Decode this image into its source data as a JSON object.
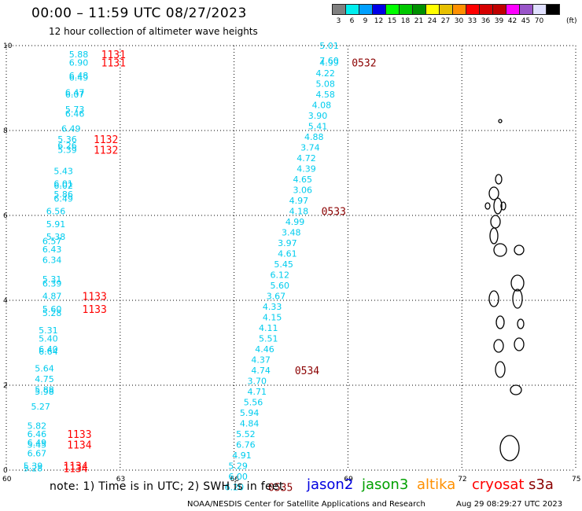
{
  "title": "00:00 – 11:59 UTC 08/27/2023",
  "subtitle": "12 hour collection of altimeter wave heights",
  "legend": {
    "unit": "(ft)",
    "bins": [
      {
        "label": "3",
        "color": "#808080"
      },
      {
        "label": "6",
        "color": "#00eeee"
      },
      {
        "label": "9",
        "color": "#00a0ff"
      },
      {
        "label": "12",
        "color": "#0000e8"
      },
      {
        "label": "15",
        "color": "#00ff00"
      },
      {
        "label": "18",
        "color": "#00c800"
      },
      {
        "label": "21",
        "color": "#009000"
      },
      {
        "label": "24",
        "color": "#ffff00"
      },
      {
        "label": "27",
        "color": "#e7c000"
      },
      {
        "label": "30",
        "color": "#ff9000"
      },
      {
        "label": "33",
        "color": "#ff0000"
      },
      {
        "label": "36",
        "color": "#d60000"
      },
      {
        "label": "39",
        "color": "#c00000"
      },
      {
        "label": "42",
        "color": "#ff00ff"
      },
      {
        "label": "45",
        "color": "#9955c9"
      },
      {
        "label": "70",
        "color": "#e0e0ff"
      },
      {
        "label": "",
        "color": "#000000"
      }
    ]
  },
  "axes": {
    "x_ticks": [
      "60",
      "63",
      "66",
      "69",
      "72",
      "75"
    ],
    "y_ticks": [
      "10",
      "8",
      "6",
      "4",
      "2",
      "0"
    ],
    "lon_range": [
      60,
      75
    ],
    "lat_range": [
      0,
      10
    ]
  },
  "colors": {
    "wave": "#00ccee",
    "time_early": "#ff0000",
    "time_late": "#8b0000"
  },
  "track_left": [
    {
      "lon": 61.9,
      "lat": 9.8,
      "v": "5.88"
    },
    {
      "lon": 61.9,
      "lat": 9.6,
      "v": "6.90"
    },
    {
      "lon": 61.9,
      "lat": 9.3,
      "v": "6.48"
    },
    {
      "lon": 61.9,
      "lat": 9.25,
      "v": "6.49"
    },
    {
      "lon": 61.8,
      "lat": 8.9,
      "v": "6.47"
    },
    {
      "lon": 61.8,
      "lat": 8.85,
      "v": "6.07"
    },
    {
      "lon": 61.8,
      "lat": 8.5,
      "v": "5.73"
    },
    {
      "lon": 61.8,
      "lat": 8.4,
      "v": "6.46"
    },
    {
      "lon": 61.7,
      "lat": 8.05,
      "v": "6.49"
    },
    {
      "lon": 61.6,
      "lat": 7.8,
      "v": "5.36"
    },
    {
      "lon": 61.6,
      "lat": 7.65,
      "v": "6.26"
    },
    {
      "lon": 61.6,
      "lat": 7.55,
      "v": "5.39"
    },
    {
      "lon": 61.5,
      "lat": 7.05,
      "v": "5.43"
    },
    {
      "lon": 61.5,
      "lat": 6.75,
      "v": "6.01"
    },
    {
      "lon": 61.5,
      "lat": 6.7,
      "v": "6.02"
    },
    {
      "lon": 61.5,
      "lat": 6.5,
      "v": "5.86"
    },
    {
      "lon": 61.5,
      "lat": 6.4,
      "v": "6.49"
    },
    {
      "lon": 61.3,
      "lat": 6.1,
      "v": "6.56"
    },
    {
      "lon": 61.3,
      "lat": 5.8,
      "v": "5.91"
    },
    {
      "lon": 61.3,
      "lat": 5.5,
      "v": "5.38"
    },
    {
      "lon": 61.2,
      "lat": 5.4,
      "v": "6.57"
    },
    {
      "lon": 61.2,
      "lat": 5.2,
      "v": "6.43"
    },
    {
      "lon": 61.2,
      "lat": 4.95,
      "v": "6.34"
    },
    {
      "lon": 61.2,
      "lat": 4.5,
      "v": "5.31"
    },
    {
      "lon": 61.2,
      "lat": 4.4,
      "v": "6.39"
    },
    {
      "lon": 61.2,
      "lat": 4.1,
      "v": "4.87"
    },
    {
      "lon": 61.2,
      "lat": 3.8,
      "v": "5.60"
    },
    {
      "lon": 61.2,
      "lat": 3.7,
      "v": "5.28"
    },
    {
      "lon": 61.1,
      "lat": 3.3,
      "v": "5.31"
    },
    {
      "lon": 61.1,
      "lat": 3.1,
      "v": "5.40"
    },
    {
      "lon": 61.1,
      "lat": 2.85,
      "v": "6.40"
    },
    {
      "lon": 61.1,
      "lat": 2.8,
      "v": "6.64"
    },
    {
      "lon": 61.0,
      "lat": 2.4,
      "v": "5.64"
    },
    {
      "lon": 61.0,
      "lat": 2.15,
      "v": "4.75"
    },
    {
      "lon": 61.0,
      "lat": 1.9,
      "v": "5.88"
    },
    {
      "lon": 61.0,
      "lat": 1.85,
      "v": "5.98"
    },
    {
      "lon": 60.9,
      "lat": 1.5,
      "v": "5.27"
    },
    {
      "lon": 60.8,
      "lat": 1.05,
      "v": "5.82"
    },
    {
      "lon": 60.8,
      "lat": 0.85,
      "v": "6.46"
    },
    {
      "lon": 60.8,
      "lat": 0.65,
      "v": "6.49"
    },
    {
      "lon": 60.8,
      "lat": 0.6,
      "v": "5.45"
    },
    {
      "lon": 60.8,
      "lat": 0.4,
      "v": "6.67"
    },
    {
      "lon": 60.7,
      "lat": 0.1,
      "v": "5.39"
    },
    {
      "lon": 60.7,
      "lat": 0.05,
      "v": "5.28"
    }
  ],
  "track_right": [
    {
      "lon": 68.5,
      "lat": 10.0,
      "v": "5.01"
    },
    {
      "lon": 68.5,
      "lat": 9.65,
      "v": "7.60"
    },
    {
      "lon": 68.5,
      "lat": 9.6,
      "v": "4.99"
    },
    {
      "lon": 68.4,
      "lat": 9.35,
      "v": "4.22"
    },
    {
      "lon": 68.4,
      "lat": 9.1,
      "v": "5.08"
    },
    {
      "lon": 68.4,
      "lat": 8.85,
      "v": "4.58"
    },
    {
      "lon": 68.3,
      "lat": 8.6,
      "v": "4.08"
    },
    {
      "lon": 68.2,
      "lat": 8.35,
      "v": "3.90"
    },
    {
      "lon": 68.2,
      "lat": 8.1,
      "v": "5.41"
    },
    {
      "lon": 68.1,
      "lat": 7.85,
      "v": "4.88"
    },
    {
      "lon": 68.0,
      "lat": 7.6,
      "v": "3.74"
    },
    {
      "lon": 67.9,
      "lat": 7.35,
      "v": "4.72"
    },
    {
      "lon": 67.9,
      "lat": 7.1,
      "v": "4.39"
    },
    {
      "lon": 67.8,
      "lat": 6.85,
      "v": "4.65"
    },
    {
      "lon": 67.8,
      "lat": 6.6,
      "v": "3.06"
    },
    {
      "lon": 67.7,
      "lat": 6.35,
      "v": "4.97"
    },
    {
      "lon": 67.7,
      "lat": 6.1,
      "v": "4.18"
    },
    {
      "lon": 67.6,
      "lat": 5.85,
      "v": "4.99"
    },
    {
      "lon": 67.5,
      "lat": 5.6,
      "v": "3.48"
    },
    {
      "lon": 67.4,
      "lat": 5.35,
      "v": "3.97"
    },
    {
      "lon": 67.4,
      "lat": 5.1,
      "v": "4.61"
    },
    {
      "lon": 67.3,
      "lat": 4.85,
      "v": "5.45"
    },
    {
      "lon": 67.2,
      "lat": 4.6,
      "v": "6.12"
    },
    {
      "lon": 67.2,
      "lat": 4.35,
      "v": "5.60"
    },
    {
      "lon": 67.1,
      "lat": 4.1,
      "v": "3.67"
    },
    {
      "lon": 67.0,
      "lat": 3.85,
      "v": "4.33"
    },
    {
      "lon": 67.0,
      "lat": 3.6,
      "v": "4.15"
    },
    {
      "lon": 66.9,
      "lat": 3.35,
      "v": "4.11"
    },
    {
      "lon": 66.9,
      "lat": 3.1,
      "v": "5.51"
    },
    {
      "lon": 66.8,
      "lat": 2.85,
      "v": "4.46"
    },
    {
      "lon": 66.7,
      "lat": 2.6,
      "v": "4.37"
    },
    {
      "lon": 66.7,
      "lat": 2.35,
      "v": "4.74"
    },
    {
      "lon": 66.6,
      "lat": 2.1,
      "v": "3.70"
    },
    {
      "lon": 66.6,
      "lat": 1.85,
      "v": "4.71"
    },
    {
      "lon": 66.5,
      "lat": 1.6,
      "v": "5.56"
    },
    {
      "lon": 66.4,
      "lat": 1.35,
      "v": "5.94"
    },
    {
      "lon": 66.4,
      "lat": 1.1,
      "v": "4.84"
    },
    {
      "lon": 66.3,
      "lat": 0.85,
      "v": "5.52"
    },
    {
      "lon": 66.3,
      "lat": 0.6,
      "v": "6.76"
    },
    {
      "lon": 66.2,
      "lat": 0.35,
      "v": "4.91"
    },
    {
      "lon": 66.1,
      "lat": 0.1,
      "v": "5.29"
    },
    {
      "lon": 66.1,
      "lat": -0.15,
      "v": "6.00"
    },
    {
      "lon": 66.0,
      "lat": -0.4,
      "v": "6.20"
    }
  ],
  "times": [
    {
      "lon": 62.5,
      "lat": 9.8,
      "t": "1131",
      "c": "early"
    },
    {
      "lon": 62.5,
      "lat": 9.6,
      "t": "1131",
      "c": "early"
    },
    {
      "lon": 62.3,
      "lat": 7.8,
      "t": "1132",
      "c": "early"
    },
    {
      "lon": 62.3,
      "lat": 7.55,
      "t": "1132",
      "c": "early"
    },
    {
      "lon": 62.0,
      "lat": 4.1,
      "t": "1133",
      "c": "early"
    },
    {
      "lon": 62.0,
      "lat": 3.8,
      "t": "1133",
      "c": "early"
    },
    {
      "lon": 61.6,
      "lat": 0.85,
      "t": "1133",
      "c": "early"
    },
    {
      "lon": 61.6,
      "lat": 0.6,
      "t": "1134",
      "c": "early"
    },
    {
      "lon": 61.5,
      "lat": 0.1,
      "t": "1134",
      "c": "early"
    },
    {
      "lon": 61.5,
      "lat": 0.05,
      "t": "1134",
      "c": "early"
    },
    {
      "lon": 69.1,
      "lat": 9.6,
      "t": "0532",
      "c": "late"
    },
    {
      "lon": 68.3,
      "lat": 6.1,
      "t": "0533",
      "c": "late"
    },
    {
      "lon": 67.6,
      "lat": 2.35,
      "t": "0534",
      "c": "late"
    },
    {
      "lon": 66.9,
      "lat": -0.4,
      "t": "0535",
      "c": "late"
    }
  ],
  "note": "note:  1) Time is in UTC;  2) SWH is in feet",
  "satellites": [
    {
      "name": "jason2",
      "color": "#0000e0"
    },
    {
      "name": "jason3",
      "color": "#00a000"
    },
    {
      "name": "altika",
      "color": "#ff9000"
    },
    {
      "name": "cryosat",
      "color": "#ff0000"
    },
    {
      "name": "s3a",
      "color": "#8b0000"
    }
  ],
  "credit": "NOAA/NESDIS Center for Satellite Applications and Research",
  "stamp": "Aug 29 08:29:27 UTC 2023"
}
